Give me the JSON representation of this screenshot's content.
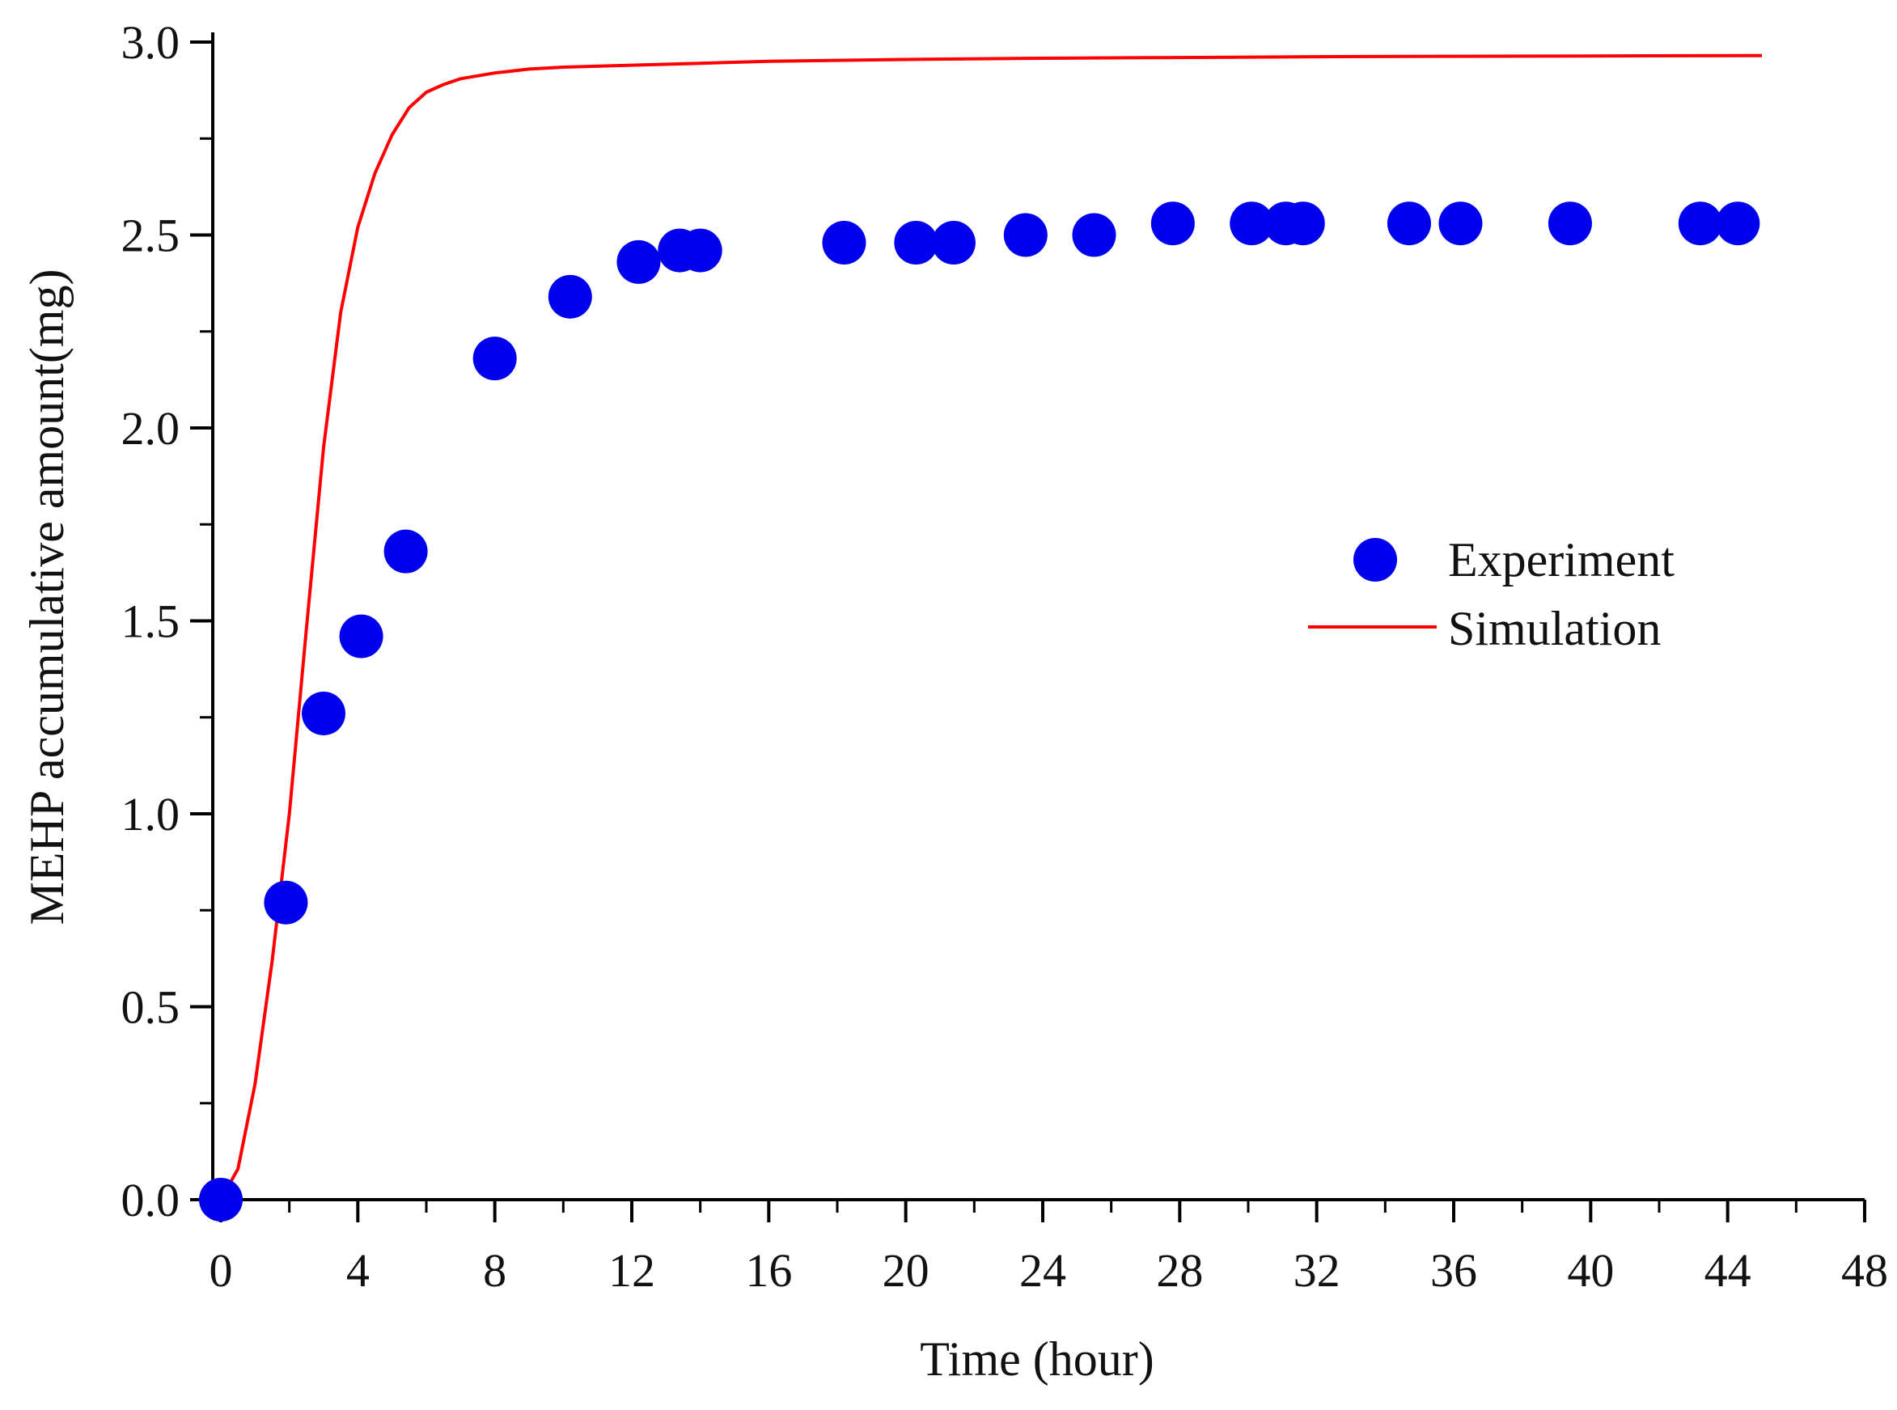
{
  "chart_data": {
    "type": "scatter+line",
    "title": "",
    "xlabel": "Time (hour)",
    "ylabel": "MEHP accumulative amount(mg)",
    "xlim": [
      0,
      48
    ],
    "ylim": [
      0,
      3.0
    ],
    "xticks": [
      0,
      4,
      8,
      12,
      16,
      20,
      24,
      28,
      32,
      36,
      40,
      44,
      48
    ],
    "yticks": [
      0.0,
      0.5,
      1.0,
      1.5,
      2.0,
      2.5,
      3.0
    ],
    "xtick_labels": [
      "0",
      "4",
      "8",
      "12",
      "16",
      "20",
      "24",
      "28",
      "32",
      "36",
      "40",
      "44",
      "48"
    ],
    "ytick_labels": [
      "0.0",
      "0.5",
      "1.0",
      "1.5",
      "2.0",
      "2.5",
      "3.0"
    ],
    "grid": false,
    "legend_position": "center-right",
    "series": [
      {
        "name": "Experiment",
        "kind": "scatter",
        "color": "#0000ee",
        "x": [
          0,
          1.9,
          3.0,
          4.1,
          5.4,
          8.0,
          10.2,
          12.2,
          13.4,
          14.0,
          18.2,
          20.3,
          21.4,
          23.5,
          25.5,
          27.8,
          30.1,
          31.1,
          31.6,
          34.7,
          36.2,
          39.4,
          43.2,
          44.3
        ],
        "y": [
          0.0,
          0.77,
          1.26,
          1.46,
          1.68,
          2.18,
          2.34,
          2.43,
          2.46,
          2.46,
          2.48,
          2.48,
          2.48,
          2.5,
          2.5,
          2.53,
          2.53,
          2.53,
          2.53,
          2.53,
          2.53,
          2.53,
          2.53,
          2.53
        ]
      },
      {
        "name": "Simulation",
        "kind": "line",
        "color": "#ff0000",
        "x": [
          0,
          0.5,
          1.0,
          1.5,
          2.0,
          2.5,
          3.0,
          3.5,
          4.0,
          4.5,
          5.0,
          5.5,
          6.0,
          6.5,
          7.0,
          8.0,
          9.0,
          10.0,
          12.0,
          14.0,
          16.0,
          20.0,
          24.0,
          28.0,
          32.0,
          36.0,
          40.0,
          45.0
        ],
        "y": [
          0.0,
          0.08,
          0.3,
          0.62,
          1.0,
          1.48,
          1.95,
          2.3,
          2.52,
          2.66,
          2.76,
          2.83,
          2.87,
          2.89,
          2.905,
          2.92,
          2.93,
          2.935,
          2.94,
          2.945,
          2.95,
          2.955,
          2.958,
          2.96,
          2.962,
          2.963,
          2.964,
          2.965
        ]
      }
    ]
  }
}
